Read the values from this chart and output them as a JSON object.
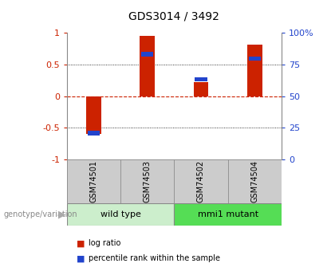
{
  "title": "GDS3014 / 3492",
  "samples": [
    "GSM74501",
    "GSM74503",
    "GSM74502",
    "GSM74504"
  ],
  "log_ratios": [
    -0.6,
    0.95,
    0.22,
    0.82
  ],
  "percentile_ranks_scaled": [
    -0.55,
    0.7,
    0.3,
    0.63
  ],
  "groups": [
    {
      "label": "wild type",
      "indices": [
        0,
        1
      ],
      "color": "#cceecc"
    },
    {
      "label": "mmi1 mutant",
      "indices": [
        2,
        3
      ],
      "color": "#55dd55"
    }
  ],
  "bar_color_red": "#cc2200",
  "bar_color_blue": "#2244cc",
  "ylim": [
    -1,
    1
  ],
  "y_left_ticks": [
    -1,
    -0.5,
    0,
    0.5,
    1
  ],
  "y_left_labels": [
    "-1",
    "-0.5",
    "0",
    "0.5",
    "1"
  ],
  "y_right_labels": [
    "0",
    "25",
    "50",
    "75",
    "100%"
  ],
  "background_color": "#ffffff",
  "plot_bg": "#ffffff",
  "genotype_label": "genotype/variation",
  "legend_items": [
    {
      "label": "log ratio",
      "color": "#cc2200"
    },
    {
      "label": "percentile rank within the sample",
      "color": "#2244cc"
    }
  ],
  "bar_width": 0.28,
  "blue_bar_height": 0.07
}
